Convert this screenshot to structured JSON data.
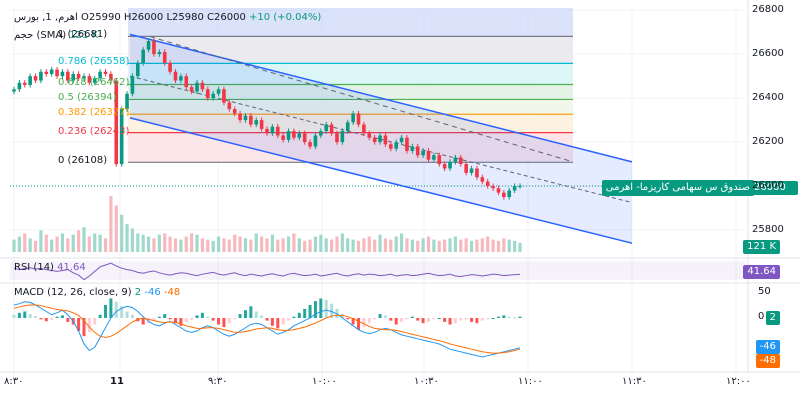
{
  "legend": {
    "symbol": "اهرم, 1, بورس",
    "o_label": "O",
    "o_value": "25990",
    "h_label": "H",
    "h_value": "26000",
    "l_label": "L",
    "l_value": "25980",
    "c_label": "C",
    "c_value": "26000",
    "change": "+10 (+0.04%)",
    "volume_label": "حجم (SMA)",
    "volume_value": "121 K"
  },
  "instrument_tag": "صندوق س سهامی کاریزما- اهرمی",
  "price_tag": "26000",
  "volume_tag": "121 K",
  "rsi": {
    "label": "RSI (14)",
    "value": "41.64",
    "tag": "41.64"
  },
  "macd": {
    "label": "MACD (12, 26, close, 9)",
    "v1": "2",
    "v2": "-46",
    "v3": "-48",
    "tag_hist": "2",
    "tag_macd": "-46",
    "tag_signal": "-48"
  },
  "fib_levels": [
    {
      "label": "1 (26681)",
      "price": 26681,
      "color": "#787b86"
    },
    {
      "label": "0.786 (26558)",
      "price": 26558,
      "color": "#00bcd4"
    },
    {
      "label": "0.618 (26462)",
      "price": 26462,
      "color": "#4caf50"
    },
    {
      "label": "0.5 (26394)",
      "price": 26394,
      "color": "#4caf50"
    },
    {
      "label": "0.382 (26327)",
      "price": 26327,
      "color": "#ff9800"
    },
    {
      "label": "0.236 (26243)",
      "price": 26243,
      "color": "#f23645"
    },
    {
      "label": "0 (26108)",
      "price": 26108,
      "color": "#787b86"
    }
  ],
  "price_axis": [
    "26800",
    "26600",
    "26400",
    "26200",
    "26000",
    "25800"
  ],
  "rsi_axis": [],
  "macd_axis": [
    "50",
    "0"
  ],
  "time_axis": [
    "۸:۳۰",
    "11",
    "۹:۳۰",
    "۱۰:۰۰",
    "۱۰:۳۰",
    "۱۱:۰۰",
    "۱۱:۳۰",
    "۱۲:۰۰"
  ],
  "colors": {
    "up": "#089981",
    "down": "#f23645",
    "channel": "#2962ff",
    "rsi": "#7e57c2",
    "macd": "#2196f3",
    "signal": "#ff6d00"
  },
  "chart_data": {
    "type": "candlestick",
    "ylim": [
      25700,
      26810
    ],
    "last_price": 26000,
    "closes": [
      26440,
      26470,
      26460,
      26500,
      26480,
      26520,
      26510,
      26530,
      26500,
      26520,
      26480,
      26510,
      26490,
      26500,
      26470,
      26490,
      26520,
      26510,
      26480,
      26100,
      26350,
      26420,
      26500,
      26560,
      26620,
      26660,
      26600,
      26610,
      26560,
      26520,
      26480,
      26500,
      26450,
      26430,
      26470,
      26440,
      26400,
      26420,
      26440,
      26380,
      26350,
      26330,
      26300,
      26320,
      26280,
      26300,
      26260,
      26240,
      26270,
      26230,
      26210,
      26250,
      26220,
      26240,
      26200,
      26180,
      26230,
      26250,
      26280,
      26240,
      26200,
      26250,
      26290,
      26330,
      26280,
      26240,
      26220,
      26200,
      26230,
      26190,
      26170,
      26200,
      26220,
      26160,
      26180,
      26140,
      26160,
      26120,
      26140,
      26100,
      26080,
      26110,
      26130,
      26100,
      26060,
      26080,
      26040,
      26020,
      26000,
      25990,
      25970,
      25950,
      25980,
      26000,
      26000
    ],
    "volumes": [
      20,
      25,
      30,
      22,
      18,
      35,
      28,
      20,
      25,
      30,
      22,
      28,
      35,
      40,
      25,
      30,
      28,
      22,
      90,
      75,
      60,
      45,
      38,
      30,
      28,
      25,
      22,
      28,
      30,
      25,
      22,
      20,
      25,
      30,
      28,
      22,
      20,
      18,
      25,
      22,
      20,
      28,
      25,
      22,
      20,
      30,
      25,
      22,
      28,
      20,
      22,
      25,
      30,
      22,
      18,
      20,
      25,
      28,
      22,
      20,
      25,
      30,
      22,
      20,
      18,
      22,
      25,
      20,
      28,
      22,
      20,
      25,
      30,
      22,
      20,
      18,
      22,
      25,
      20,
      18,
      20,
      22,
      25,
      20,
      22,
      18,
      20,
      22,
      25,
      20,
      18,
      22,
      20,
      18,
      15
    ],
    "rsi": [
      55,
      52,
      54,
      56,
      53,
      55,
      52,
      50,
      48,
      50,
      52,
      45,
      40,
      30,
      38,
      48,
      58,
      62,
      66,
      60,
      55,
      52,
      50,
      46,
      44,
      47,
      49,
      45,
      42,
      40,
      43,
      45,
      44,
      41,
      39,
      42,
      44,
      46,
      42,
      40,
      43,
      45,
      41,
      39,
      42,
      40,
      38,
      41,
      43,
      40,
      38,
      42,
      44,
      41,
      39,
      40,
      42,
      38,
      40,
      42,
      44,
      40,
      38,
      41,
      43,
      40,
      42,
      41,
      39,
      40,
      42,
      38,
      40,
      41,
      39,
      40,
      42,
      44,
      41,
      39,
      40,
      42,
      38,
      37,
      39,
      41,
      40,
      38,
      40,
      42,
      41,
      39,
      40,
      41,
      41.64
    ],
    "macd_hist": [
      5,
      8,
      10,
      6,
      3,
      -2,
      -5,
      -3,
      2,
      4,
      -6,
      -10,
      -20,
      -28,
      -22,
      -10,
      5,
      20,
      30,
      25,
      18,
      10,
      5,
      -5,
      -10,
      -8,
      -4,
      2,
      6,
      -2,
      -8,
      -12,
      -6,
      -3,
      4,
      8,
      2,
      -4,
      -10,
      -14,
      -8,
      -2,
      6,
      12,
      18,
      10,
      4,
      -4,
      -12,
      -16,
      -10,
      -4,
      2,
      8,
      14,
      20,
      26,
      30,
      28,
      22,
      14,
      6,
      -2,
      -10,
      -18,
      -14,
      -8,
      -2,
      6,
      4,
      -4,
      -10,
      -6,
      -2,
      2,
      -4,
      -8,
      -6,
      -2,
      0,
      -6,
      -10,
      -8,
      -4,
      -2,
      -6,
      -8,
      -4,
      -2,
      0,
      2,
      4,
      2,
      1,
      2
    ],
    "macd": [
      20,
      22,
      25,
      24,
      20,
      15,
      10,
      5,
      8,
      12,
      5,
      -5,
      -20,
      -40,
      -50,
      -45,
      -30,
      -15,
      0,
      10,
      15,
      18,
      16,
      10,
      2,
      -5,
      -10,
      -12,
      -8,
      -5,
      -10,
      -15,
      -20,
      -22,
      -20,
      -15,
      -12,
      -15,
      -20,
      -25,
      -28,
      -25,
      -20,
      -15,
      -10,
      -8,
      -10,
      -15,
      -20,
      -25,
      -22,
      -18,
      -12,
      -8,
      -4,
      0,
      6,
      10,
      12,
      10,
      6,
      0,
      -6,
      -12,
      -18,
      -22,
      -24,
      -22,
      -18,
      -16,
      -18,
      -22,
      -26,
      -28,
      -30,
      -32,
      -34,
      -36,
      -38,
      -40,
      -44,
      -48,
      -50,
      -52,
      -54,
      -56,
      -58,
      -60,
      -58,
      -56,
      -54,
      -52,
      -50,
      -48,
      -46
    ],
    "signal": [
      15,
      17,
      19,
      20,
      20,
      19,
      17,
      15,
      13,
      12,
      11,
      8,
      4,
      -4,
      -14,
      -22,
      -28,
      -30,
      -28,
      -24,
      -18,
      -12,
      -6,
      -2,
      0,
      -2,
      -4,
      -6,
      -7,
      -6,
      -7,
      -9,
      -12,
      -14,
      -16,
      -16,
      -15,
      -15,
      -16,
      -18,
      -20,
      -22,
      -22,
      -21,
      -19,
      -17,
      -16,
      -15,
      -16,
      -18,
      -19,
      -19,
      -18,
      -16,
      -14,
      -11,
      -8,
      -4,
      0,
      3,
      4,
      4,
      2,
      -1,
      -5,
      -9,
      -13,
      -16,
      -17,
      -18,
      -18,
      -19,
      -21,
      -23,
      -25,
      -27,
      -29,
      -31,
      -33,
      -35,
      -37,
      -40,
      -42,
      -44,
      -46,
      -48,
      -50,
      -52,
      -53,
      -54,
      -54,
      -53,
      -52,
      -50,
      -48
    ]
  }
}
